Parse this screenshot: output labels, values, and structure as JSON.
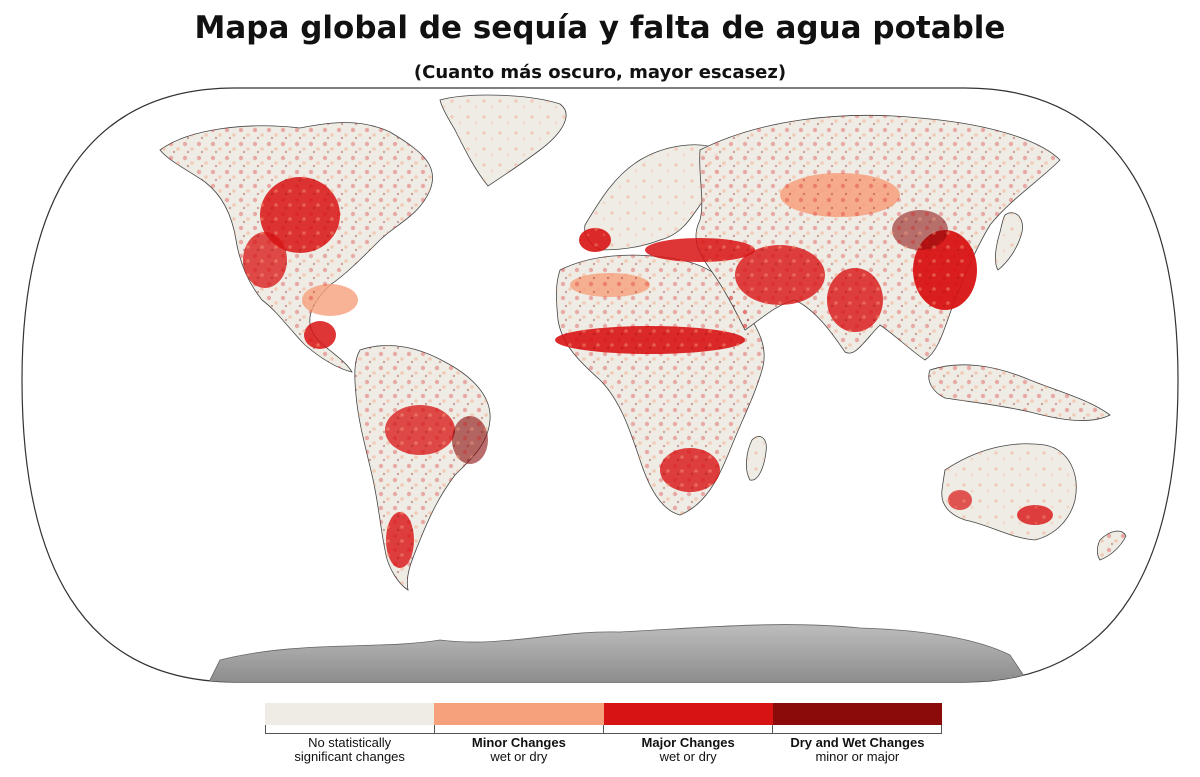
{
  "header": {
    "title": "Mapa global de sequía y falta de agua potable",
    "subtitle": "(Cuanto más oscuro, mayor escasez)"
  },
  "colors": {
    "ocean": "#ffffff",
    "land_base": "#eeece4",
    "minor": "#f6a07c",
    "major": "#d81313",
    "dry_wet": "#8b0a0a",
    "antarctica": "#9a9a9a",
    "coast": "#444444"
  },
  "legend": {
    "items": [
      {
        "label": "No statistically",
        "sublabel": "significant changes",
        "color": "#eeece4",
        "bold": false
      },
      {
        "label": "Minor Changes",
        "sublabel": "wet or dry",
        "color": "#f6a07c",
        "bold": true
      },
      {
        "label": "Major Changes",
        "sublabel": "wet or dry",
        "color": "#d81313",
        "bold": true
      },
      {
        "label": "Dry and Wet Changes",
        "sublabel": "minor or major",
        "color": "#8b0a0a",
        "bold": true
      }
    ]
  }
}
